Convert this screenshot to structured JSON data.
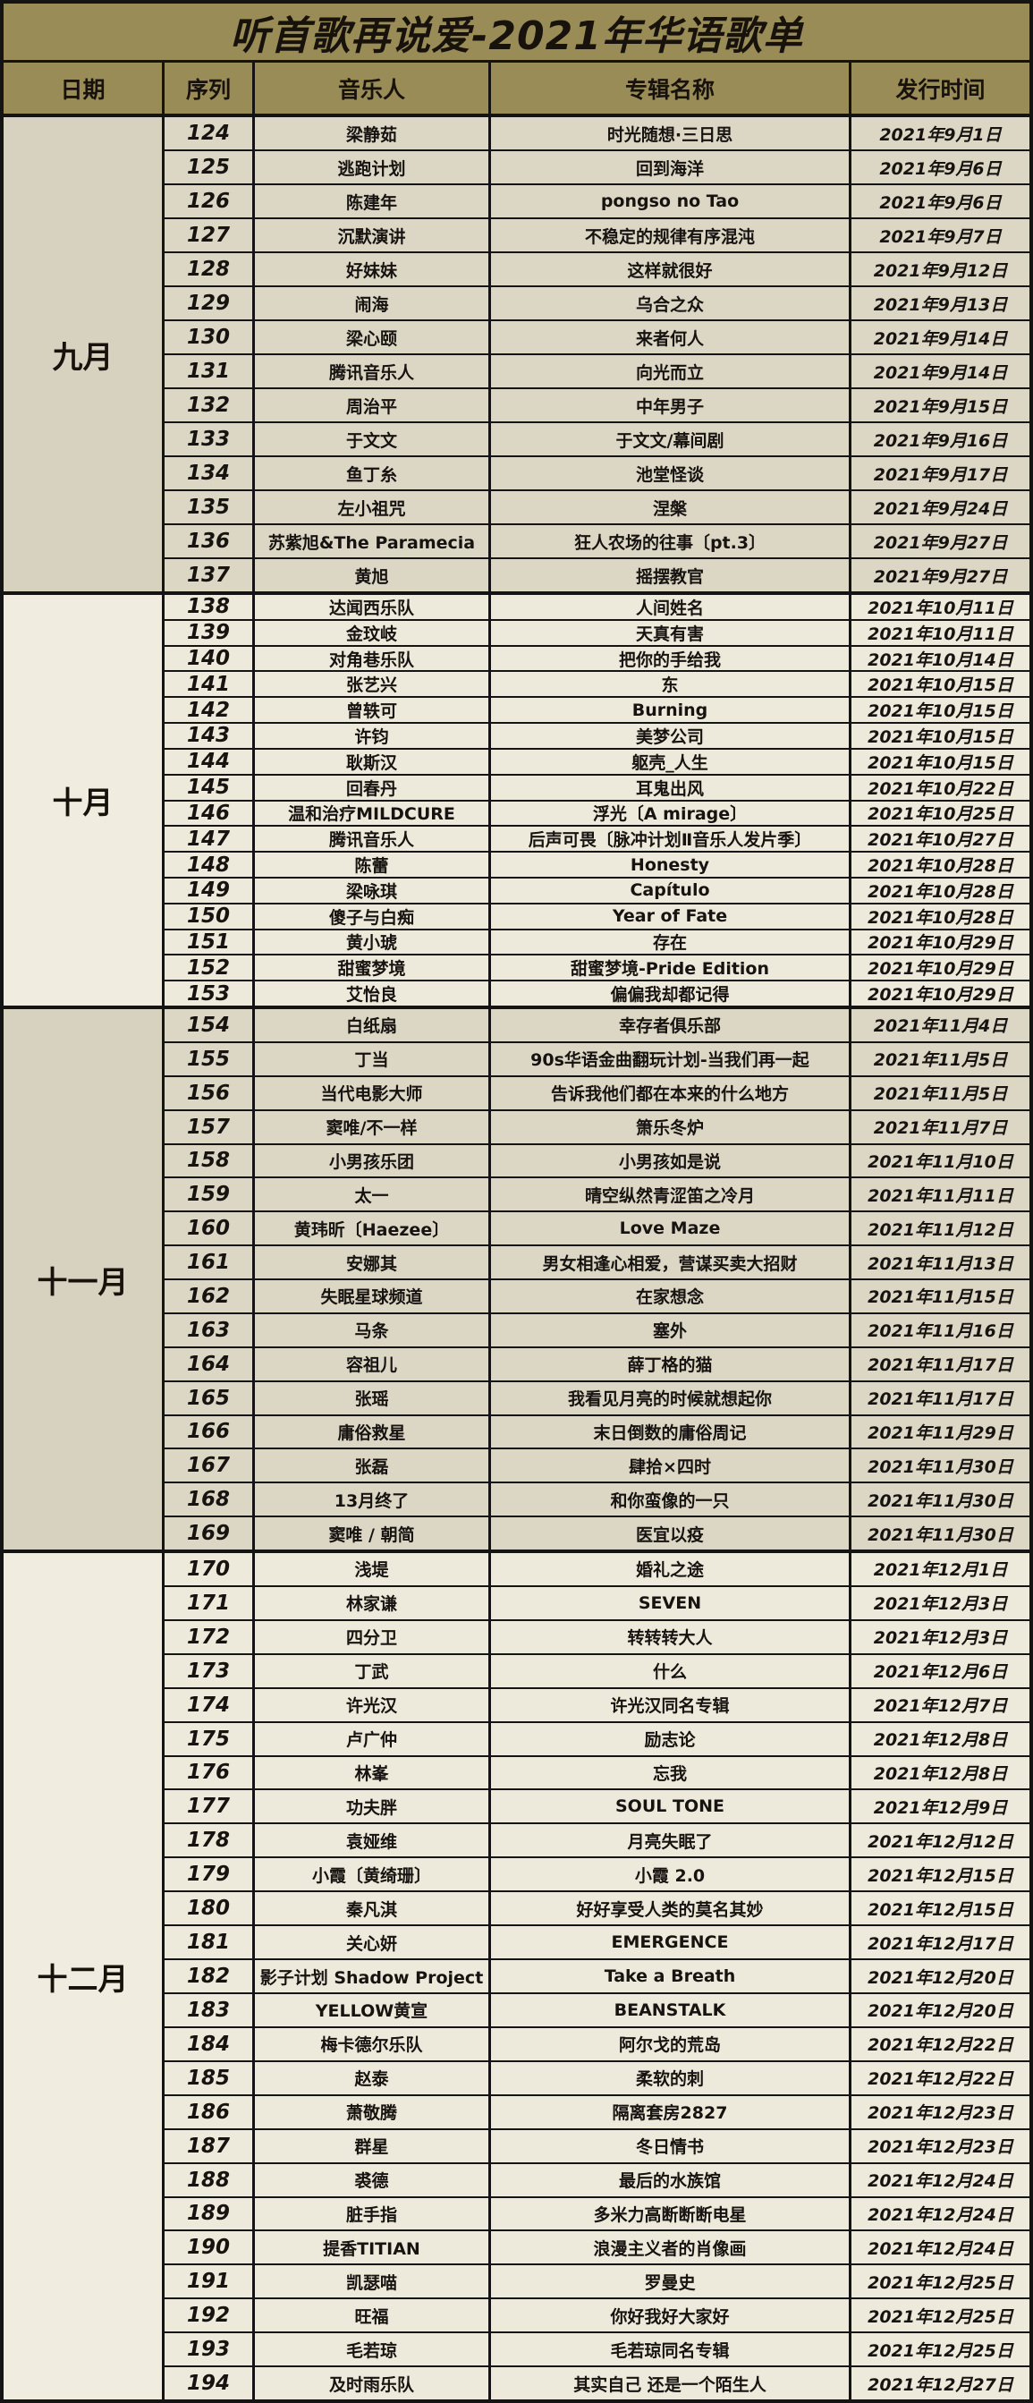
{
  "title": "听首歌再说爱-2021年华语歌单",
  "columns": {
    "date": "日期",
    "seq": "序列",
    "artist": "音乐人",
    "album": "专辑名称",
    "release": "发行时间"
  },
  "colors": {
    "header_bg": "#9a8c56",
    "block_dark_bg": "#dcd7c5",
    "block_light_bg": "#edeadb",
    "border": "#141414",
    "text": "#17120c"
  },
  "groups": [
    {
      "month": "九月",
      "rows": [
        {
          "seq": "124",
          "artist": "梁静茹",
          "album": "时光随想·三日思",
          "release": "2021年9月1日"
        },
        {
          "seq": "125",
          "artist": "逃跑计划",
          "album": "回到海洋",
          "release": "2021年9月6日"
        },
        {
          "seq": "126",
          "artist": "陈建年",
          "album": "pongso no Tao",
          "release": "2021年9月6日"
        },
        {
          "seq": "127",
          "artist": "沉默演讲",
          "album": "不稳定的规律有序混沌",
          "release": "2021年9月7日"
        },
        {
          "seq": "128",
          "artist": "好妹妹",
          "album": "这样就很好",
          "release": "2021年9月12日"
        },
        {
          "seq": "129",
          "artist": "闹海",
          "album": "乌合之众",
          "release": "2021年9月13日"
        },
        {
          "seq": "130",
          "artist": "梁心颐",
          "album": "来者何人",
          "release": "2021年9月14日"
        },
        {
          "seq": "131",
          "artist": "腾讯音乐人",
          "album": "向光而立",
          "release": "2021年9月14日"
        },
        {
          "seq": "132",
          "artist": "周治平",
          "album": "中年男子",
          "release": "2021年9月15日"
        },
        {
          "seq": "133",
          "artist": "于文文",
          "album": "于文文/幕间剧",
          "release": "2021年9月16日"
        },
        {
          "seq": "134",
          "artist": "鱼丁糸",
          "album": "池堂怪谈",
          "release": "2021年9月17日"
        },
        {
          "seq": "135",
          "artist": "左小祖咒",
          "album": "涅槃",
          "release": "2021年9月24日"
        },
        {
          "seq": "136",
          "artist": "苏紫旭&The Paramecia",
          "album": "狂人农场的往事〔pt.3〕",
          "release": "2021年9月27日"
        },
        {
          "seq": "137",
          "artist": "黄旭",
          "album": "摇摆教官",
          "release": "2021年9月27日"
        }
      ]
    },
    {
      "month": "十月",
      "rows": [
        {
          "seq": "138",
          "artist": "达闻西乐队",
          "album": "人间姓名",
          "release": "2021年10月11日"
        },
        {
          "seq": "139",
          "artist": "金玟岐",
          "album": "天真有害",
          "release": "2021年10月11日"
        },
        {
          "seq": "140",
          "artist": "对角巷乐队",
          "album": "把你的手给我",
          "release": "2021年10月14日"
        },
        {
          "seq": "141",
          "artist": "张艺兴",
          "album": "东",
          "release": "2021年10月15日"
        },
        {
          "seq": "142",
          "artist": "曾轶可",
          "album": "Burning",
          "release": "2021年10月15日"
        },
        {
          "seq": "143",
          "artist": "许钧",
          "album": "美梦公司",
          "release": "2021年10月15日"
        },
        {
          "seq": "144",
          "artist": "耿斯汉",
          "album": "躯壳_人生",
          "release": "2021年10月15日"
        },
        {
          "seq": "145",
          "artist": "回春丹",
          "album": "耳鬼出风",
          "release": "2021年10月22日"
        },
        {
          "seq": "146",
          "artist": "温和治疗MILDCURE",
          "album": "浮光〔A mirage〕",
          "release": "2021年10月25日"
        },
        {
          "seq": "147",
          "artist": "腾讯音乐人",
          "album": "后声可畏〔脉冲计划Ⅱ音乐人发片季〕",
          "release": "2021年10月27日"
        },
        {
          "seq": "148",
          "artist": "陈蕾",
          "album": "Honesty",
          "release": "2021年10月28日"
        },
        {
          "seq": "149",
          "artist": "梁咏琪",
          "album": "Capítulo",
          "release": "2021年10月28日"
        },
        {
          "seq": "150",
          "artist": "傻子与白痴",
          "album": "Year of Fate",
          "release": "2021年10月28日"
        },
        {
          "seq": "151",
          "artist": "黄小琥",
          "album": "存在",
          "release": "2021年10月29日"
        },
        {
          "seq": "152",
          "artist": "甜蜜梦境",
          "album": "甜蜜梦境-Pride Edition",
          "release": "2021年10月29日"
        },
        {
          "seq": "153",
          "artist": "艾怡良",
          "album": "偏偏我却都记得",
          "release": "2021年10月29日"
        }
      ]
    },
    {
      "month": "十一月",
      "rows": [
        {
          "seq": "154",
          "artist": "白纸扇",
          "album": "幸存者俱乐部",
          "release": "2021年11月4日"
        },
        {
          "seq": "155",
          "artist": "丁当",
          "album": "90s华语金曲翻玩计划-当我们再一起",
          "release": "2021年11月5日"
        },
        {
          "seq": "156",
          "artist": "当代电影大师",
          "album": "告诉我他们都在本来的什么地方",
          "release": "2021年11月5日"
        },
        {
          "seq": "157",
          "artist": "窦唯/不一样",
          "album": "箫乐冬炉",
          "release": "2021年11月7日"
        },
        {
          "seq": "158",
          "artist": "小男孩乐团",
          "album": "小男孩如是说",
          "release": "2021年11月10日"
        },
        {
          "seq": "159",
          "artist": "太一",
          "album": "晴空纵然青涩笛之冷月",
          "release": "2021年11月11日"
        },
        {
          "seq": "160",
          "artist": "黄玮昕〔Haezee〕",
          "album": "Love Maze",
          "release": "2021年11月12日"
        },
        {
          "seq": "161",
          "artist": "安娜其",
          "album": "男女相逢心相爱，营谋买卖大招财",
          "release": "2021年11月13日"
        },
        {
          "seq": "162",
          "artist": "失眠星球频道",
          "album": "在家想念",
          "release": "2021年11月15日"
        },
        {
          "seq": "163",
          "artist": "马条",
          "album": "塞外",
          "release": "2021年11月16日"
        },
        {
          "seq": "164",
          "artist": "容祖儿",
          "album": "薛丁格的猫",
          "release": "2021年11月17日"
        },
        {
          "seq": "165",
          "artist": "张瑶",
          "album": "我看见月亮的时候就想起你",
          "release": "2021年11月17日"
        },
        {
          "seq": "166",
          "artist": "庸俗救星",
          "album": "末日倒数的庸俗周记",
          "release": "2021年11月29日"
        },
        {
          "seq": "167",
          "artist": "张磊",
          "album": "肆拾×四时",
          "release": "2021年11月30日"
        },
        {
          "seq": "168",
          "artist": "13月终了",
          "album": "和你蛮像的一只",
          "release": "2021年11月30日"
        },
        {
          "seq": "169",
          "artist": "窦唯 / 朝简",
          "album": "医宜以疫",
          "release": "2021年11月30日"
        }
      ]
    },
    {
      "month": "十二月",
      "rows": [
        {
          "seq": "170",
          "artist": "浅堤",
          "album": "婚礼之途",
          "release": "2021年12月1日"
        },
        {
          "seq": "171",
          "artist": "林家谦",
          "album": "SEVEN",
          "release": "2021年12月3日"
        },
        {
          "seq": "172",
          "artist": "四分卫",
          "album": "转转转大人",
          "release": "2021年12月3日"
        },
        {
          "seq": "173",
          "artist": "丁武",
          "album": "什么",
          "release": "2021年12月6日"
        },
        {
          "seq": "174",
          "artist": "许光汉",
          "album": "许光汉同名专辑",
          "release": "2021年12月7日"
        },
        {
          "seq": "175",
          "artist": "卢广仲",
          "album": "励志论",
          "release": "2021年12月8日"
        },
        {
          "seq": "176",
          "artist": "林峯",
          "album": "忘我",
          "release": "2021年12月8日"
        },
        {
          "seq": "177",
          "artist": "功夫胖",
          "album": "SOUL TONE",
          "release": "2021年12月9日"
        },
        {
          "seq": "178",
          "artist": "袁娅维",
          "album": "月亮失眠了",
          "release": "2021年12月12日"
        },
        {
          "seq": "179",
          "artist": "小霞〔黄绮珊〕",
          "album": "小霞 2.0",
          "release": "2021年12月15日"
        },
        {
          "seq": "180",
          "artist": "秦凡淇",
          "album": "好好享受人类的莫名其妙",
          "release": "2021年12月15日"
        },
        {
          "seq": "181",
          "artist": "关心妍",
          "album": "EMERGENCE",
          "release": "2021年12月17日"
        },
        {
          "seq": "182",
          "artist": "影子计划 Shadow Project",
          "album": "Take a Breath",
          "release": "2021年12月20日"
        },
        {
          "seq": "183",
          "artist": "YELLOW黄宣",
          "album": "BEANSTALK",
          "release": "2021年12月20日"
        },
        {
          "seq": "184",
          "artist": "梅卡德尔乐队",
          "album": "阿尔戈的荒岛",
          "release": "2021年12月22日"
        },
        {
          "seq": "185",
          "artist": "赵泰",
          "album": "柔软的刺",
          "release": "2021年12月22日"
        },
        {
          "seq": "186",
          "artist": "萧敬腾",
          "album": "隔离套房2827",
          "release": "2021年12月23日"
        },
        {
          "seq": "187",
          "artist": "群星",
          "album": "冬日情书",
          "release": "2021年12月23日"
        },
        {
          "seq": "188",
          "artist": "裘德",
          "album": "最后的水族馆",
          "release": "2021年12月24日"
        },
        {
          "seq": "189",
          "artist": "脏手指",
          "album": "多米力高断断断电星",
          "release": "2021年12月24日"
        },
        {
          "seq": "190",
          "artist": "提香TITIAN",
          "album": "浪漫主义者的肖像画",
          "release": "2021年12月24日"
        },
        {
          "seq": "191",
          "artist": "凯瑟喵",
          "album": "罗曼史",
          "release": "2021年12月25日"
        },
        {
          "seq": "192",
          "artist": "旺福",
          "album": "你好我好大家好",
          "release": "2021年12月25日"
        },
        {
          "seq": "193",
          "artist": "毛若琼",
          "album": "毛若琼同名专辑",
          "release": "2021年12月25日"
        },
        {
          "seq": "194",
          "artist": "及时雨乐队",
          "album": "其实自己 还是一个陌生人",
          "release": "2021年12月27日"
        }
      ]
    }
  ]
}
